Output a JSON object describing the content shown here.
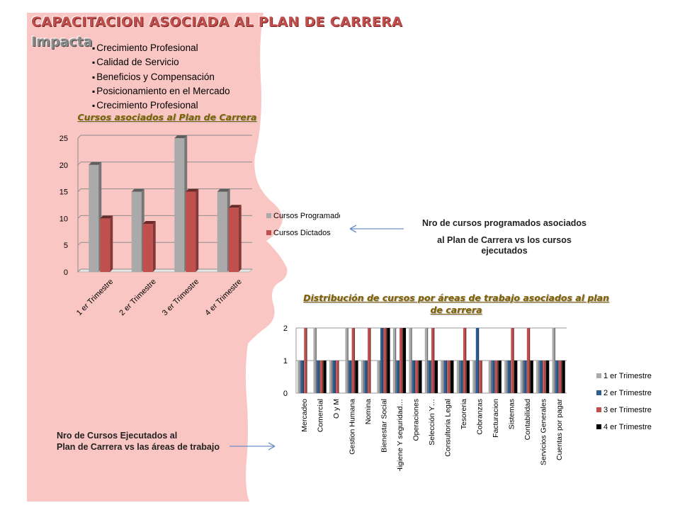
{
  "slide": {
    "title": "CAPACITACION ASOCIADA AL PLAN DE CARRERA",
    "subtitle": "Impacta",
    "bullets": [
      "Crecimiento Profesional",
      "Calidad de Servicio",
      "Beneficios y Compensación",
      "Posicionamiento en el Mercado",
      "Crecimiento Profesional"
    ],
    "note_top_line1": "Nro de cursos programados asociados",
    "note_top_line2": "al Plan de Carrera vs los cursos",
    "note_top_line3": "ejecutados",
    "note_bottom_line1": "Nro de Cursos Ejecutados al",
    "note_bottom_line2": "Plan de Carrera vs las áreas de trabajo"
  },
  "colors": {
    "title_red": "#c0504d",
    "background_silhouette": "#f9c6c3",
    "series_gray": "#aaaaaa",
    "series_red": "#c0504d",
    "series_blue": "#2e5e91",
    "series_black": "#000000",
    "arrow": "#6f8fc6"
  },
  "chart_data": [
    {
      "type": "bar",
      "title": "Cursos asociados  al Plan de Carrera",
      "categories": [
        "1 er Trimestre",
        "2 er Trimestre",
        "3 er Trimestre",
        "4 er Trimestre"
      ],
      "series": [
        {
          "name": "Cursos Programados",
          "values": [
            20,
            15,
            25,
            15
          ]
        },
        {
          "name": "Cursos Dictados",
          "values": [
            10,
            9,
            15,
            12
          ]
        }
      ],
      "ylim": [
        0,
        25
      ],
      "yticks": [
        0,
        5,
        10,
        15,
        20,
        25
      ],
      "grid": true,
      "legend": "right"
    },
    {
      "type": "bar",
      "title": "Distribución de cursos por áreas de trabajo asociados al plan de carrera",
      "categories": [
        "Mercadeo",
        "Comercial",
        "O y M",
        "Gestion Humana",
        "Nomina",
        "Bienestar Social",
        "Higiene Y seguridad…",
        "Operaciones",
        "Selección Y…",
        "Consultoria Legal",
        "Tesoreria",
        "Cobranzas",
        "Facturacion",
        "Sistemas",
        "Contabilidad",
        "Servicios Generales",
        "Cuentas por pagar"
      ],
      "series": [
        {
          "name": "1 er Trimestre",
          "values": [
            1,
            2,
            1,
            2,
            1,
            1,
            2,
            2,
            2,
            1,
            1,
            1,
            1,
            1,
            1,
            1,
            2
          ]
        },
        {
          "name": "2 er Trimestre",
          "values": [
            1,
            1,
            1,
            1,
            1,
            2,
            1,
            1,
            1,
            1,
            1,
            2,
            1,
            1,
            1,
            1,
            1
          ]
        },
        {
          "name": "3 er Trimestre",
          "values": [
            2,
            1,
            1,
            2,
            2,
            2,
            2,
            1,
            2,
            1,
            2,
            1,
            1,
            2,
            2,
            1,
            1
          ]
        },
        {
          "name": "4 er Trimestre",
          "values": [
            0,
            1,
            0,
            1,
            0,
            2,
            2,
            1,
            1,
            1,
            1,
            0,
            1,
            1,
            1,
            1,
            1
          ]
        }
      ],
      "ylim": [
        0,
        2
      ],
      "yticks": [
        0,
        1,
        2
      ],
      "grid": true,
      "legend": "right"
    }
  ]
}
